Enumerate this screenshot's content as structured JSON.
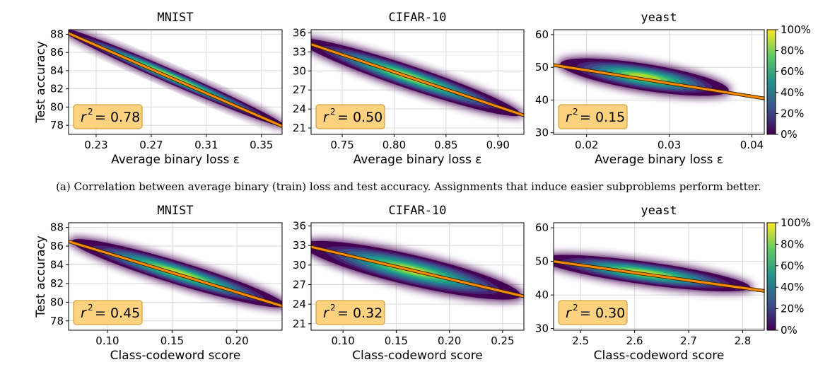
{
  "captions": {
    "a": "(a) Correlation between average binary (train) loss and test accuracy. Assignments that induce easier subproblems perform better."
  },
  "colorbar": {
    "ticks": [
      "0%",
      "20%",
      "40%",
      "60%",
      "80%",
      "100%"
    ],
    "colors": [
      "#440154",
      "#3b528b",
      "#21918c",
      "#5ec962",
      "#fde725"
    ]
  },
  "colors": {
    "scatter": "#440154",
    "fit_line": "#ff8c00",
    "fit_edge": "#3a2a00",
    "r2_box_fill": "#ffd27f",
    "r2_box_edge": "#c8901e",
    "grid": "#d9d9d9"
  },
  "chart_data": [
    {
      "type": "scatter",
      "title": "MNIST",
      "xlabel": "Average binary loss ε",
      "ylabel": "Test accuracy",
      "xlim": [
        0.21,
        0.365
      ],
      "ylim": [
        77,
        88.5
      ],
      "xticks": [
        0.23,
        0.27,
        0.31,
        0.35
      ],
      "xticklabels": [
        "0.23",
        "0.27",
        "0.31",
        "0.35"
      ],
      "yticks": [
        78,
        80,
        82,
        84,
        86,
        88
      ],
      "yticklabels": [
        "78",
        "80",
        "82",
        "84",
        "86",
        "88"
      ],
      "fit": {
        "x": [
          0.21,
          0.365
        ],
        "y": [
          88.1,
          77.9
        ]
      },
      "cloud": {
        "center": [
          0.285,
          83.3
        ],
        "slope": -66,
        "along": 0.085,
        "across": 1.7
      },
      "r2_label": "r",
      "r2_value": "= 0.78",
      "grid": true
    },
    {
      "type": "scatter",
      "title": "CIFAR-10",
      "xlabel": "Average binary loss ε",
      "ylabel": "",
      "xlim": [
        0.72,
        0.925
      ],
      "ylim": [
        20,
        36.5
      ],
      "xticks": [
        0.75,
        0.8,
        0.85,
        0.9
      ],
      "xticklabels": [
        "0.75",
        "0.80",
        "0.85",
        "0.90"
      ],
      "yticks": [
        21,
        24,
        27,
        30,
        33,
        36
      ],
      "yticklabels": [
        "21",
        "24",
        "27",
        "30",
        "33",
        "36"
      ],
      "fit": {
        "x": [
          0.72,
          0.925
        ],
        "y": [
          34.2,
          23.0
        ]
      },
      "cloud": {
        "center": [
          0.815,
          29.0
        ],
        "slope": -55,
        "along": 0.11,
        "across": 4.0
      },
      "r2_label": "r",
      "r2_value": "= 0.50",
      "grid": true
    },
    {
      "type": "scatter",
      "title": "yeast",
      "xlabel": "Average binary loss ε",
      "ylabel": "",
      "xlim": [
        0.016,
        0.0415
      ],
      "ylim": [
        29.5,
        61.5
      ],
      "xticks": [
        0.02,
        0.03,
        0.04
      ],
      "xticklabels": [
        "0.02",
        "0.03",
        "0.04"
      ],
      "yticks": [
        30,
        40,
        50,
        60
      ],
      "yticklabels": [
        "30",
        "40",
        "50",
        "60"
      ],
      "fit": {
        "x": [
          0.016,
          0.0415
        ],
        "y": [
          50.7,
          40.5
        ]
      },
      "cloud": {
        "center": [
          0.027,
          47.0
        ],
        "slope": -400,
        "along": 0.0105,
        "across": 9.0
      },
      "r2_label": "r",
      "r2_value": "= 0.15",
      "grid": true
    },
    {
      "type": "scatter",
      "title": "MNIST",
      "xlabel": "Class-codeword score",
      "ylabel": "Test accuracy",
      "xlim": [
        0.07,
        0.235
      ],
      "ylim": [
        77,
        88.5
      ],
      "xticks": [
        0.1,
        0.15,
        0.2
      ],
      "xticklabels": [
        "0.10",
        "0.15",
        "0.20"
      ],
      "yticks": [
        78,
        80,
        82,
        84,
        86,
        88
      ],
      "yticklabels": [
        "78",
        "80",
        "82",
        "84",
        "86",
        "88"
      ],
      "fit": {
        "x": [
          0.07,
          0.235
        ],
        "y": [
          86.5,
          79.6
        ]
      },
      "cloud": {
        "center": [
          0.155,
          83.1
        ],
        "slope": -42,
        "along": 0.085,
        "across": 2.7
      },
      "r2_label": "r",
      "r2_value": "= 0.45",
      "grid": true
    },
    {
      "type": "scatter",
      "title": "CIFAR-10",
      "xlabel": "Class-codeword score",
      "ylabel": "",
      "xlim": [
        0.07,
        0.27
      ],
      "ylim": [
        20,
        36.5
      ],
      "xticks": [
        0.1,
        0.15,
        0.2,
        0.25
      ],
      "xticklabels": [
        "0.10",
        "0.15",
        "0.20",
        "0.25"
      ],
      "yticks": [
        21,
        24,
        27,
        30,
        33,
        36
      ],
      "yticklabels": [
        "21",
        "24",
        "27",
        "30",
        "33",
        "36"
      ],
      "fit": {
        "x": [
          0.07,
          0.27
        ],
        "y": [
          32.8,
          25.2
        ]
      },
      "cloud": {
        "center": [
          0.165,
          29.2
        ],
        "slope": -38,
        "along": 0.105,
        "across": 5.2
      },
      "r2_label": "r",
      "r2_value": "= 0.32",
      "grid": true
    },
    {
      "type": "scatter",
      "title": "yeast",
      "xlabel": "Class-codeword score",
      "ylabel": "",
      "xlim": [
        2.45,
        2.84
      ],
      "ylim": [
        29.5,
        61.5
      ],
      "xticks": [
        2.5,
        2.6,
        2.7,
        2.8
      ],
      "xticklabels": [
        "2.5",
        "2.6",
        "2.7",
        "2.8"
      ],
      "yticks": [
        30,
        40,
        50,
        60
      ],
      "yticklabels": [
        "30",
        "40",
        "50",
        "60"
      ],
      "fit": {
        "x": [
          2.45,
          2.84
        ],
        "y": [
          50.0,
          41.2
        ]
      },
      "cloud": {
        "center": [
          2.62,
          46.5
        ],
        "slope": -22,
        "along": 0.2,
        "across": 7.5
      },
      "r2_label": "r",
      "r2_value": "= 0.30",
      "grid": true
    }
  ]
}
